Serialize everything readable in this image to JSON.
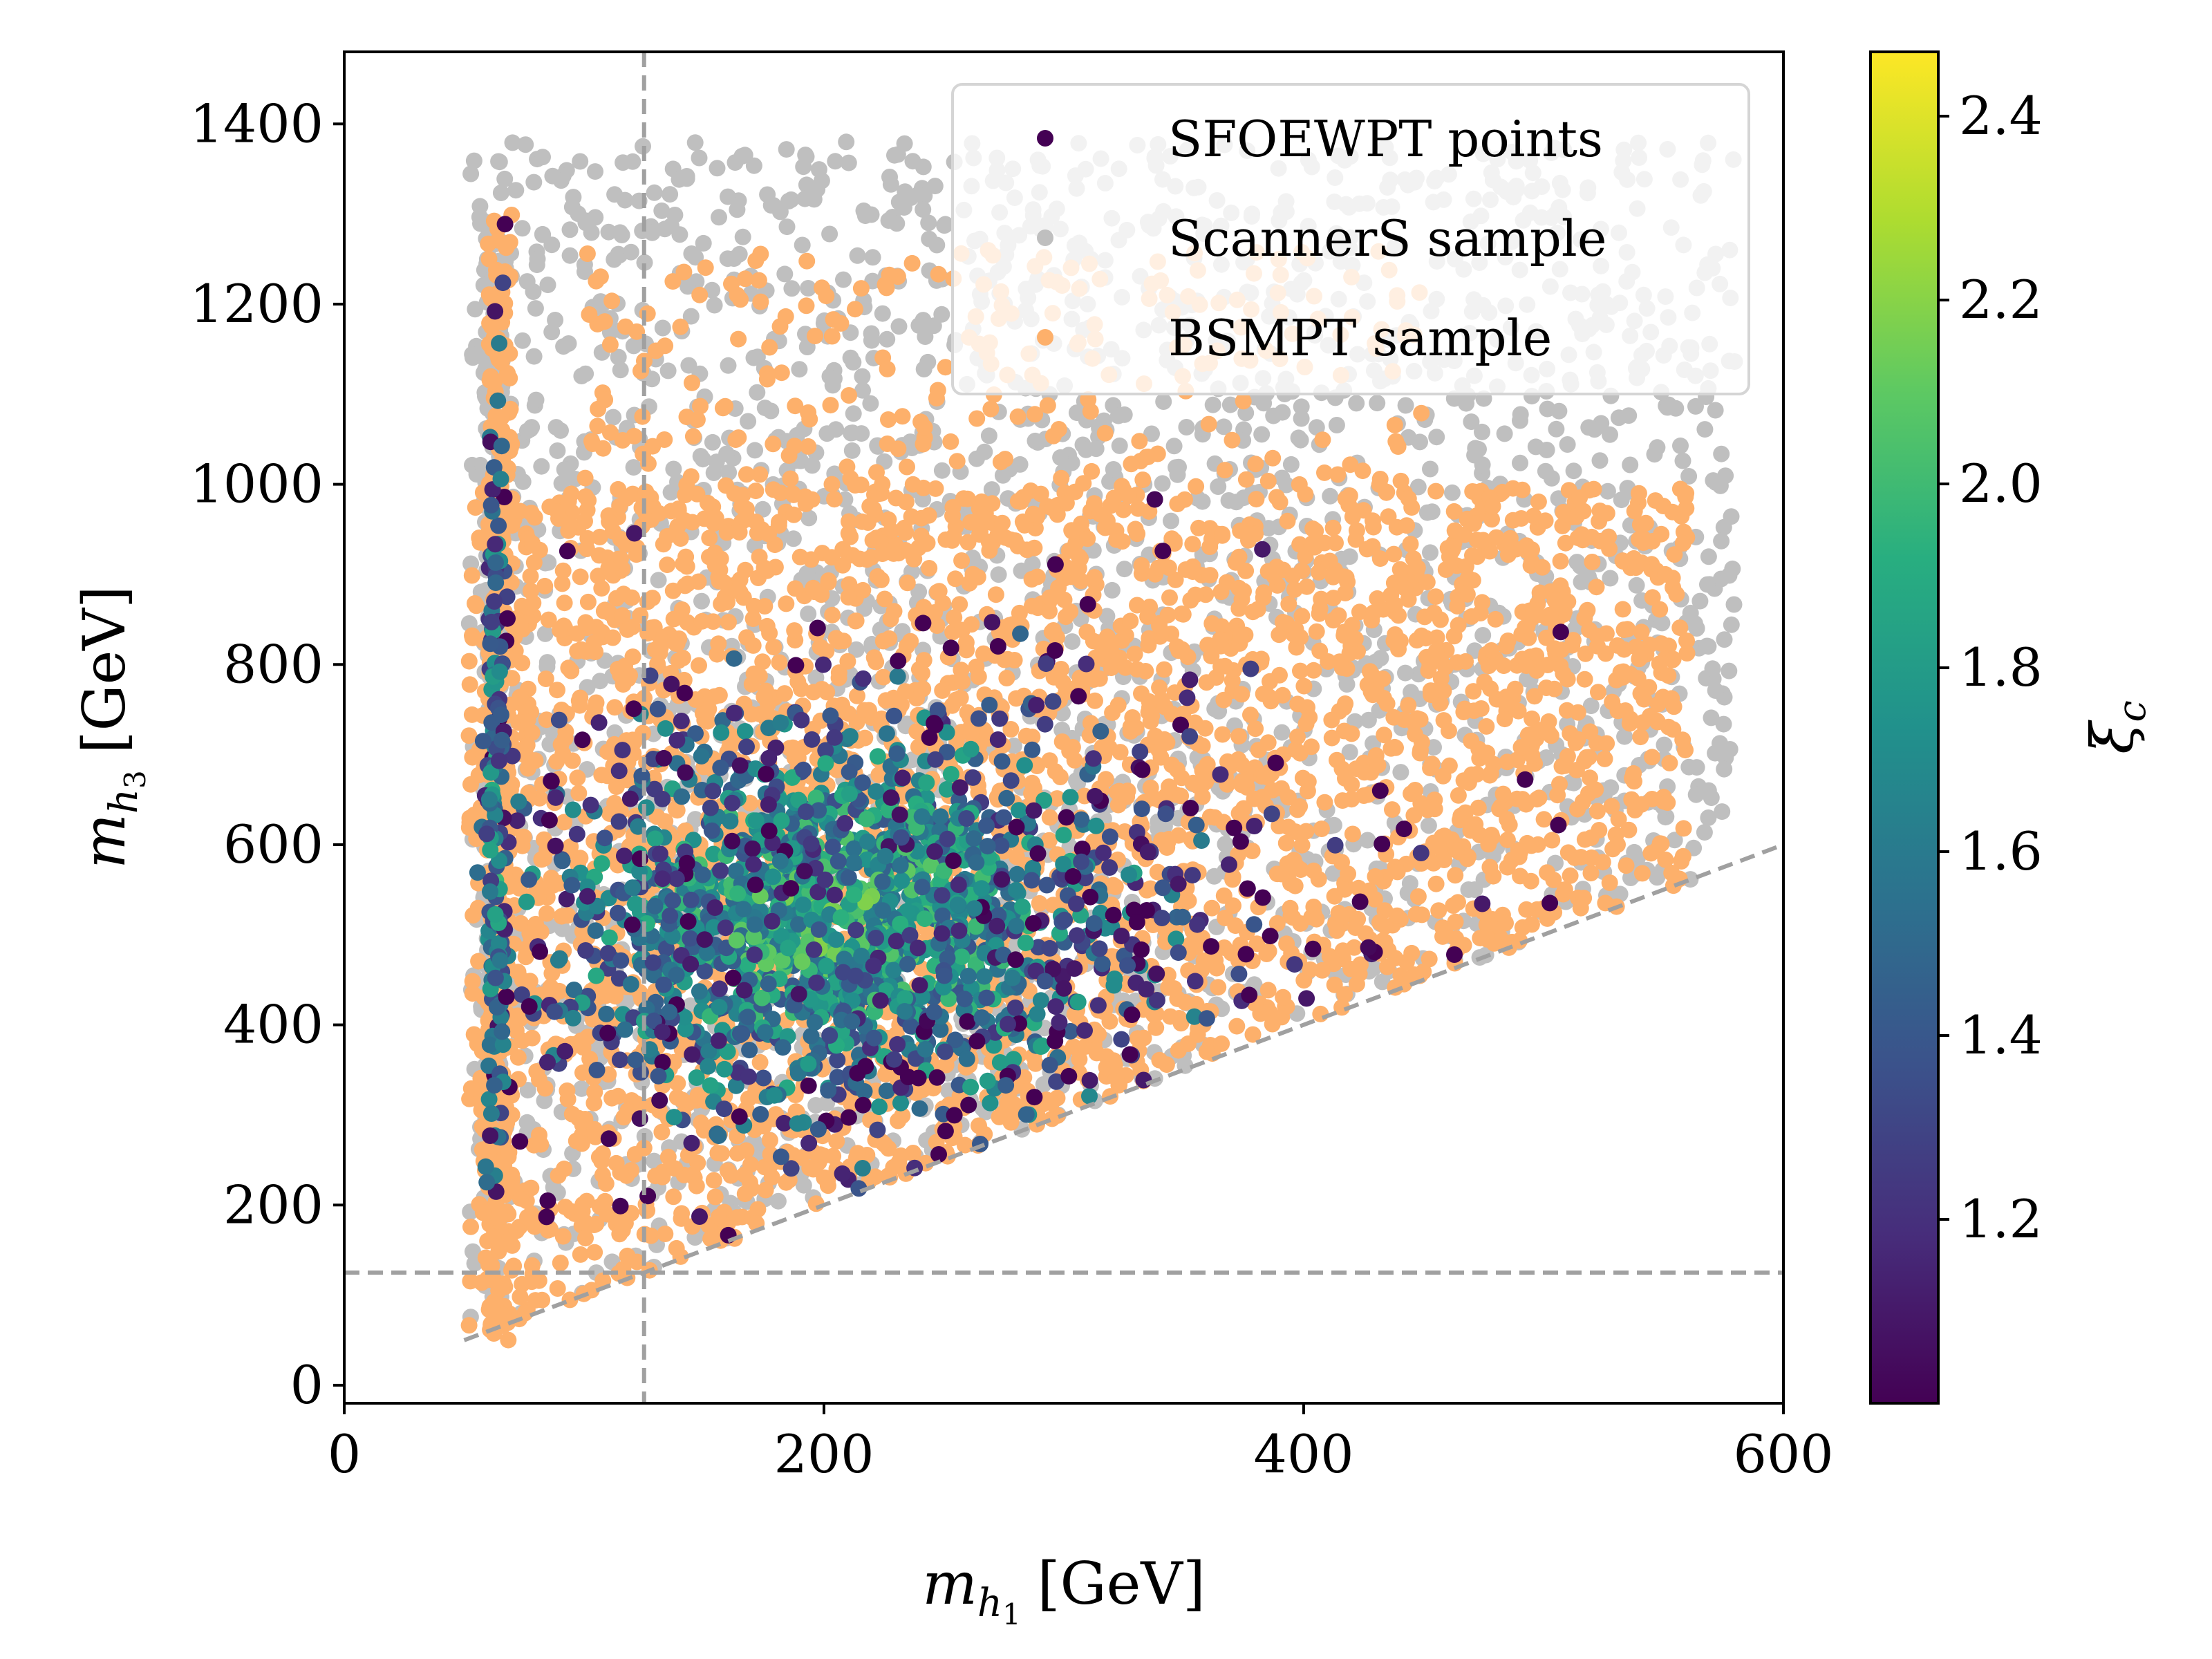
{
  "chart_data": {
    "type": "scatter",
    "xlabel": {
      "symbol": "m",
      "sub": "h",
      "subsub": "1",
      "unit": "[GeV]"
    },
    "ylabel": {
      "symbol": "m",
      "sub": "h",
      "subsub": "3",
      "unit": "[GeV]"
    },
    "xlim": [
      0,
      600
    ],
    "ylim": [
      -20,
      1480
    ],
    "xticks": [
      "0",
      "200",
      "400",
      "600"
    ],
    "xtick_values": [
      0,
      200,
      400,
      600
    ],
    "yticks": [
      "0",
      "200",
      "400",
      "600",
      "800",
      "1000",
      "1200",
      "1400"
    ],
    "ytick_values": [
      0,
      200,
      400,
      600,
      800,
      1000,
      1200,
      1400
    ],
    "reference_lines": [
      {
        "kind": "vertical",
        "x": 125,
        "style": "dashed",
        "color": "#a0a0a0"
      },
      {
        "kind": "horizontal",
        "y": 125,
        "style": "dashed",
        "color": "#a0a0a0"
      },
      {
        "kind": "line",
        "x": [
          50,
          600
        ],
        "y": [
          50,
          600
        ],
        "style": "dashed",
        "color": "#a0a0a0"
      }
    ],
    "legend": {
      "position": "top-right",
      "entries": [
        {
          "label": "SFOEWPT points",
          "color": "#440154"
        },
        {
          "label": "ScannerS sample",
          "color": "#bfbfbf"
        },
        {
          "label": "BSMPT sample",
          "color": "#fdb06b"
        }
      ]
    },
    "colorbar": {
      "label": "ξ",
      "label_sub": "c",
      "range": [
        1.0,
        2.47
      ],
      "ticks": [
        "1.2",
        "1.4",
        "1.6",
        "1.8",
        "2.0",
        "2.2",
        "2.4"
      ],
      "tick_values": [
        1.2,
        1.4,
        1.6,
        1.8,
        2.0,
        2.2,
        2.4
      ],
      "colormap": "viridis"
    },
    "series": [
      {
        "name": "ScannerS sample",
        "color": "#bfbfbf",
        "regions": [
          {
            "x_range": [
              52,
              580
            ],
            "y_range": [
              40,
              1380
            ],
            "lower_bound": "y >= x",
            "n": 2400
          },
          {
            "x_range": [
              58,
              66
            ],
            "y_range": [
              80,
              1300
            ],
            "n": 200
          }
        ]
      },
      {
        "name": "BSMPT sample",
        "color": "#fdb06b",
        "regions": [
          {
            "x_range": [
              52,
              560
            ],
            "y_range": [
              45,
              1000
            ],
            "lower_bound": "y >= x",
            "n": 3200
          },
          {
            "x_range": [
              60,
              70
            ],
            "y_range": [
              50,
              1300
            ],
            "n": 260
          },
          {
            "x_range": [
              100,
              450
            ],
            "y_range": [
              1000,
              1260
            ],
            "n": 240
          }
        ]
      },
      {
        "name": "SFOEWPT points",
        "colormap": "viridis",
        "clusters": [
          {
            "center": [
              205,
              520
            ],
            "spread": [
              55,
              95
            ],
            "n": 1400,
            "xi_center": 1.9
          },
          {
            "center": [
              230,
              500
            ],
            "spread": [
              110,
              170
            ],
            "n": 450,
            "xi_center": 1.35
          },
          {
            "center": [
              63,
              620
            ],
            "spread": [
              2,
              230
            ],
            "n": 160,
            "xi_center": 1.7
          }
        ]
      }
    ]
  }
}
